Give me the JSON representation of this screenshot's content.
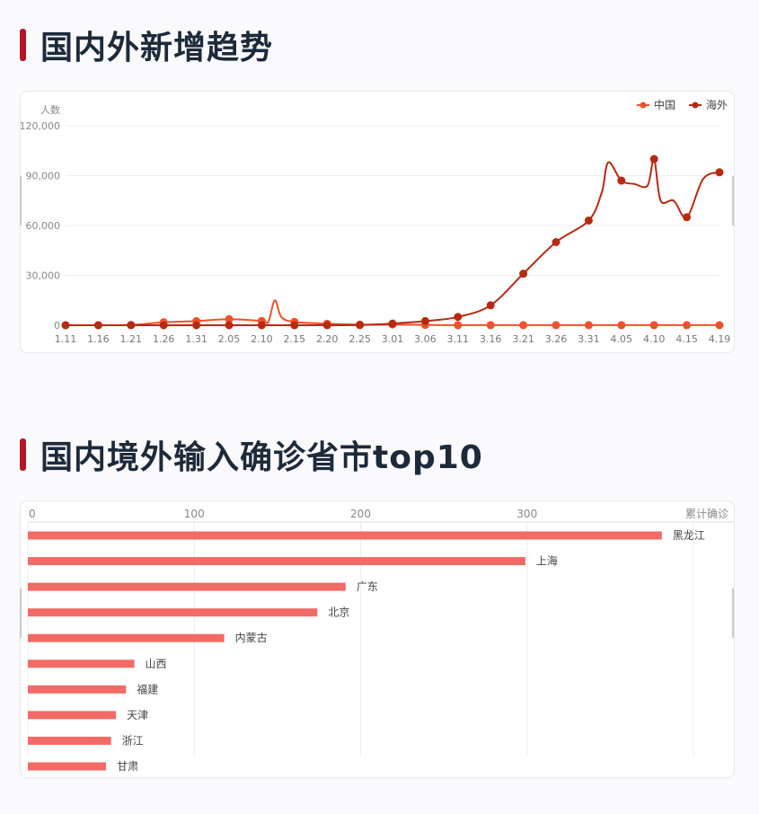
{
  "sections": {
    "trend_title": "国内外新增趋势",
    "import_title": "国内境外输入确诊省市top10"
  },
  "colors": {
    "accent_bar": "#b4172a",
    "china_line": "#f0502c",
    "overseas_line": "#b62a12",
    "bar_fill": "#f26b66"
  },
  "chart_data": [
    {
      "type": "line",
      "ylabel": "人数",
      "ylim": [
        0,
        120000
      ],
      "yticks": [
        "0",
        "30,000",
        "60,000",
        "90,000",
        "120,000"
      ],
      "ytick_values": [
        0,
        30000,
        60000,
        90000,
        120000
      ],
      "xtick_labels": [
        "1.11",
        "1.16",
        "1.21",
        "1.26",
        "1.31",
        "2.05",
        "2.10",
        "2.15",
        "2.20",
        "2.25",
        "3.01",
        "3.06",
        "3.11",
        "3.16",
        "3.21",
        "3.26",
        "3.31",
        "4.05",
        "4.10",
        "4.15",
        "4.19"
      ],
      "legend": "top-right",
      "grid": true,
      "series": [
        {
          "name": "中国",
          "color": "#f0502c",
          "x": [
            "1.11",
            "1.16",
            "1.21",
            "1.26",
            "1.31",
            "2.05",
            "2.10",
            "2.11",
            "2.12",
            "2.13",
            "2.15",
            "2.20",
            "2.25",
            "3.01",
            "3.06",
            "3.11",
            "3.16",
            "3.21",
            "3.26",
            "3.31",
            "4.05",
            "4.10",
            "4.15",
            "4.19"
          ],
          "values": [
            0,
            0,
            200,
            1800,
            2500,
            3700,
            2600,
            2000,
            15000,
            5000,
            2000,
            900,
            400,
            500,
            200,
            30,
            40,
            50,
            60,
            50,
            40,
            50,
            50,
            30
          ]
        },
        {
          "name": "海外",
          "color": "#b62a12",
          "x": [
            "1.11",
            "1.16",
            "1.21",
            "1.26",
            "1.31",
            "2.05",
            "2.10",
            "2.15",
            "2.20",
            "2.25",
            "3.01",
            "3.06",
            "3.11",
            "3.16",
            "3.21",
            "3.26",
            "3.31",
            "4.02",
            "4.03",
            "4.05",
            "4.07",
            "4.09",
            "4.10",
            "4.11",
            "4.13",
            "4.15",
            "4.17",
            "4.19"
          ],
          "values": [
            0,
            0,
            0,
            0,
            0,
            0,
            0,
            0,
            0,
            100,
            1000,
            2500,
            5000,
            12000,
            31000,
            50000,
            63000,
            80000,
            98000,
            87000,
            85000,
            84000,
            100000,
            75000,
            75000,
            65000,
            88000,
            92000
          ]
        }
      ]
    },
    {
      "type": "bar",
      "orientation": "horizontal",
      "xlabel": "累计确诊",
      "xlim": [
        0,
        400
      ],
      "xticks": [
        "0",
        "100",
        "200",
        "300"
      ],
      "xtick_values": [
        0,
        100,
        200,
        300
      ],
      "grid": true,
      "categories": [
        "黑龙江",
        "上海",
        "广东",
        "北京",
        "内蒙古",
        "山西",
        "福建",
        "天津",
        "浙江",
        "甘肃"
      ],
      "values": [
        381,
        299,
        191,
        174,
        118,
        64,
        59,
        53,
        50,
        47
      ]
    }
  ]
}
